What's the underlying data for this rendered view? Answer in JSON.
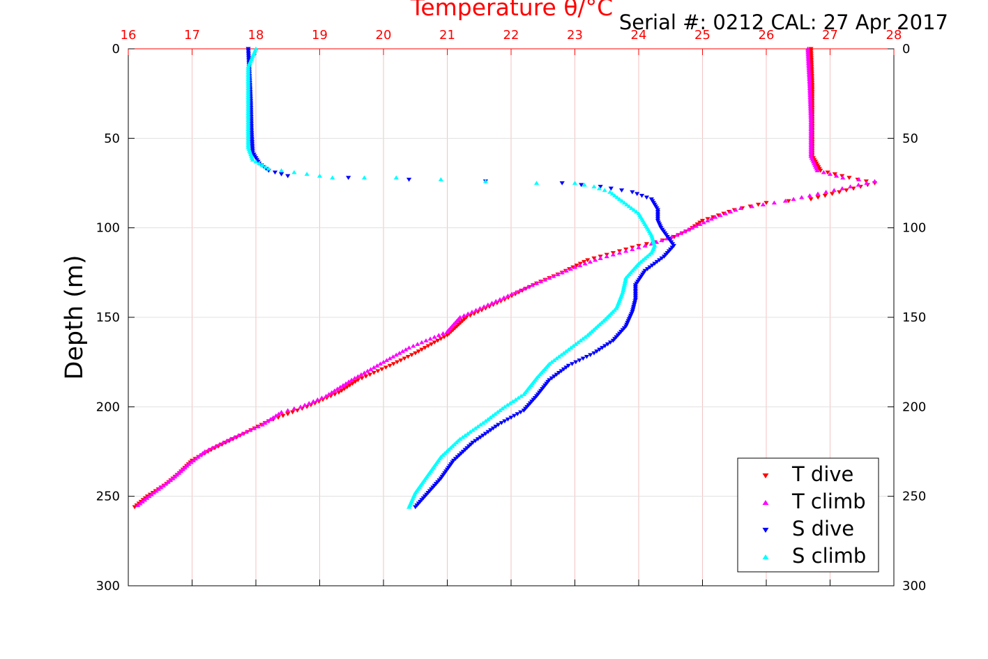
{
  "chart_data": {
    "type": "scatter",
    "title": "Temperature θ/°C",
    "subtitle": "Serial #: 0212  CAL: 27 Apr 2017",
    "xlabel": "Temperature θ/°C",
    "ylabel": "Depth (m)",
    "xlim": [
      16,
      28
    ],
    "ylim": [
      0,
      300
    ],
    "y_reversed": true,
    "x_axis_position": "top",
    "x_ticks": [
      16,
      17,
      18,
      19,
      20,
      21,
      22,
      23,
      24,
      25,
      26,
      27,
      28
    ],
    "y_ticks": [
      0,
      50,
      100,
      150,
      200,
      250,
      300
    ],
    "grid": true,
    "legend_position": "bottom-right",
    "colors": {
      "axis_x": "#ff0000",
      "axis_y": "#000000",
      "grid_x": "#f4c2c2",
      "grid_y": "#e0e0e0"
    },
    "series": [
      {
        "name": "T dive",
        "color": "#ff0000",
        "marker": "triangle-down",
        "points": [
          [
            26.7,
            0
          ],
          [
            26.72,
            20
          ],
          [
            26.72,
            40
          ],
          [
            26.72,
            60
          ],
          [
            26.85,
            68
          ],
          [
            27.3,
            72
          ],
          [
            27.7,
            75
          ],
          [
            26.7,
            84
          ],
          [
            26.0,
            86
          ],
          [
            25.5,
            90
          ],
          [
            25.0,
            96
          ],
          [
            24.8,
            101
          ],
          [
            24.5,
            106
          ],
          [
            24.0,
            110
          ],
          [
            23.6,
            114
          ],
          [
            23.2,
            118
          ],
          [
            22.8,
            125
          ],
          [
            22.4,
            131
          ],
          [
            21.9,
            140
          ],
          [
            21.3,
            150
          ],
          [
            21.0,
            160
          ],
          [
            20.5,
            170
          ],
          [
            20.1,
            177
          ],
          [
            19.6,
            185
          ],
          [
            19.3,
            192
          ],
          [
            18.8,
            200
          ],
          [
            18.2,
            208
          ],
          [
            17.7,
            217
          ],
          [
            17.3,
            224
          ],
          [
            17.0,
            230
          ],
          [
            16.8,
            237
          ],
          [
            16.6,
            243
          ],
          [
            16.3,
            250
          ],
          [
            16.1,
            256
          ]
        ]
      },
      {
        "name": "T climb",
        "color": "#ff00ff",
        "marker": "triangle-up",
        "points": [
          [
            26.65,
            0
          ],
          [
            26.68,
            20
          ],
          [
            26.7,
            40
          ],
          [
            26.7,
            60
          ],
          [
            26.8,
            68
          ],
          [
            27.2,
            72
          ],
          [
            27.7,
            74
          ],
          [
            26.3,
            85
          ],
          [
            25.6,
            89
          ],
          [
            25.2,
            94
          ],
          [
            24.9,
            99
          ],
          [
            24.6,
            104
          ],
          [
            24.2,
            109
          ],
          [
            23.8,
            113
          ],
          [
            23.4,
            117
          ],
          [
            23.0,
            122
          ],
          [
            22.6,
            128
          ],
          [
            22.2,
            134
          ],
          [
            21.7,
            142
          ],
          [
            21.2,
            150
          ],
          [
            21.0,
            158
          ],
          [
            20.4,
            167
          ],
          [
            20.0,
            175
          ],
          [
            19.5,
            185
          ],
          [
            19.1,
            194
          ],
          [
            18.7,
            200
          ],
          [
            18.4,
            203
          ],
          [
            18.1,
            210
          ],
          [
            17.6,
            218
          ],
          [
            17.2,
            225
          ],
          [
            16.95,
            232
          ],
          [
            16.7,
            240
          ],
          [
            16.4,
            248
          ],
          [
            16.15,
            255
          ]
        ]
      },
      {
        "name": "S dive",
        "color": "#0000ff",
        "marker": "triangle-down",
        "points": [
          [
            17.88,
            0
          ],
          [
            17.9,
            15
          ],
          [
            17.92,
            30
          ],
          [
            17.93,
            45
          ],
          [
            17.95,
            58
          ],
          [
            18.05,
            64
          ],
          [
            18.2,
            68
          ],
          [
            18.5,
            71
          ],
          [
            20.4,
            73
          ],
          [
            22.8,
            75
          ],
          [
            23.4,
            77
          ],
          [
            23.9,
            80
          ],
          [
            24.2,
            84
          ],
          [
            24.3,
            90
          ],
          [
            24.3,
            96
          ],
          [
            24.35,
            100
          ],
          [
            24.45,
            105
          ],
          [
            24.55,
            110
          ],
          [
            24.4,
            116
          ],
          [
            24.1,
            124
          ],
          [
            23.95,
            132
          ],
          [
            23.95,
            140
          ],
          [
            23.9,
            147
          ],
          [
            23.8,
            155
          ],
          [
            23.6,
            163
          ],
          [
            23.3,
            170
          ],
          [
            22.9,
            177
          ],
          [
            22.6,
            185
          ],
          [
            22.4,
            194
          ],
          [
            22.2,
            202
          ],
          [
            21.8,
            210
          ],
          [
            21.4,
            220
          ],
          [
            21.1,
            230
          ],
          [
            20.9,
            240
          ],
          [
            20.7,
            248
          ],
          [
            20.5,
            256
          ]
        ]
      },
      {
        "name": "S climb",
        "color": "#00ffff",
        "marker": "triangle-up",
        "points": [
          [
            18.0,
            0
          ],
          [
            17.88,
            10
          ],
          [
            17.88,
            25
          ],
          [
            17.88,
            40
          ],
          [
            17.88,
            55
          ],
          [
            17.95,
            62
          ],
          [
            18.2,
            67
          ],
          [
            18.8,
            70
          ],
          [
            19.2,
            72
          ],
          [
            19.7,
            72
          ],
          [
            20.2,
            72
          ],
          [
            20.9,
            73
          ],
          [
            21.6,
            74
          ],
          [
            22.4,
            75
          ],
          [
            23.0,
            75
          ],
          [
            23.3,
            77
          ],
          [
            23.55,
            80
          ],
          [
            23.7,
            84
          ],
          [
            23.85,
            88
          ],
          [
            24.0,
            92
          ],
          [
            24.1,
            98
          ],
          [
            24.2,
            104
          ],
          [
            24.25,
            110
          ],
          [
            24.2,
            114
          ],
          [
            24.0,
            120
          ],
          [
            23.8,
            128
          ],
          [
            23.75,
            136
          ],
          [
            23.65,
            145
          ],
          [
            23.45,
            152
          ],
          [
            23.2,
            160
          ],
          [
            22.9,
            168
          ],
          [
            22.6,
            176
          ],
          [
            22.4,
            184
          ],
          [
            22.2,
            193
          ],
          [
            21.9,
            200
          ],
          [
            21.6,
            208
          ],
          [
            21.2,
            218
          ],
          [
            20.9,
            228
          ],
          [
            20.7,
            238
          ],
          [
            20.5,
            248
          ],
          [
            20.4,
            256
          ]
        ]
      }
    ]
  }
}
